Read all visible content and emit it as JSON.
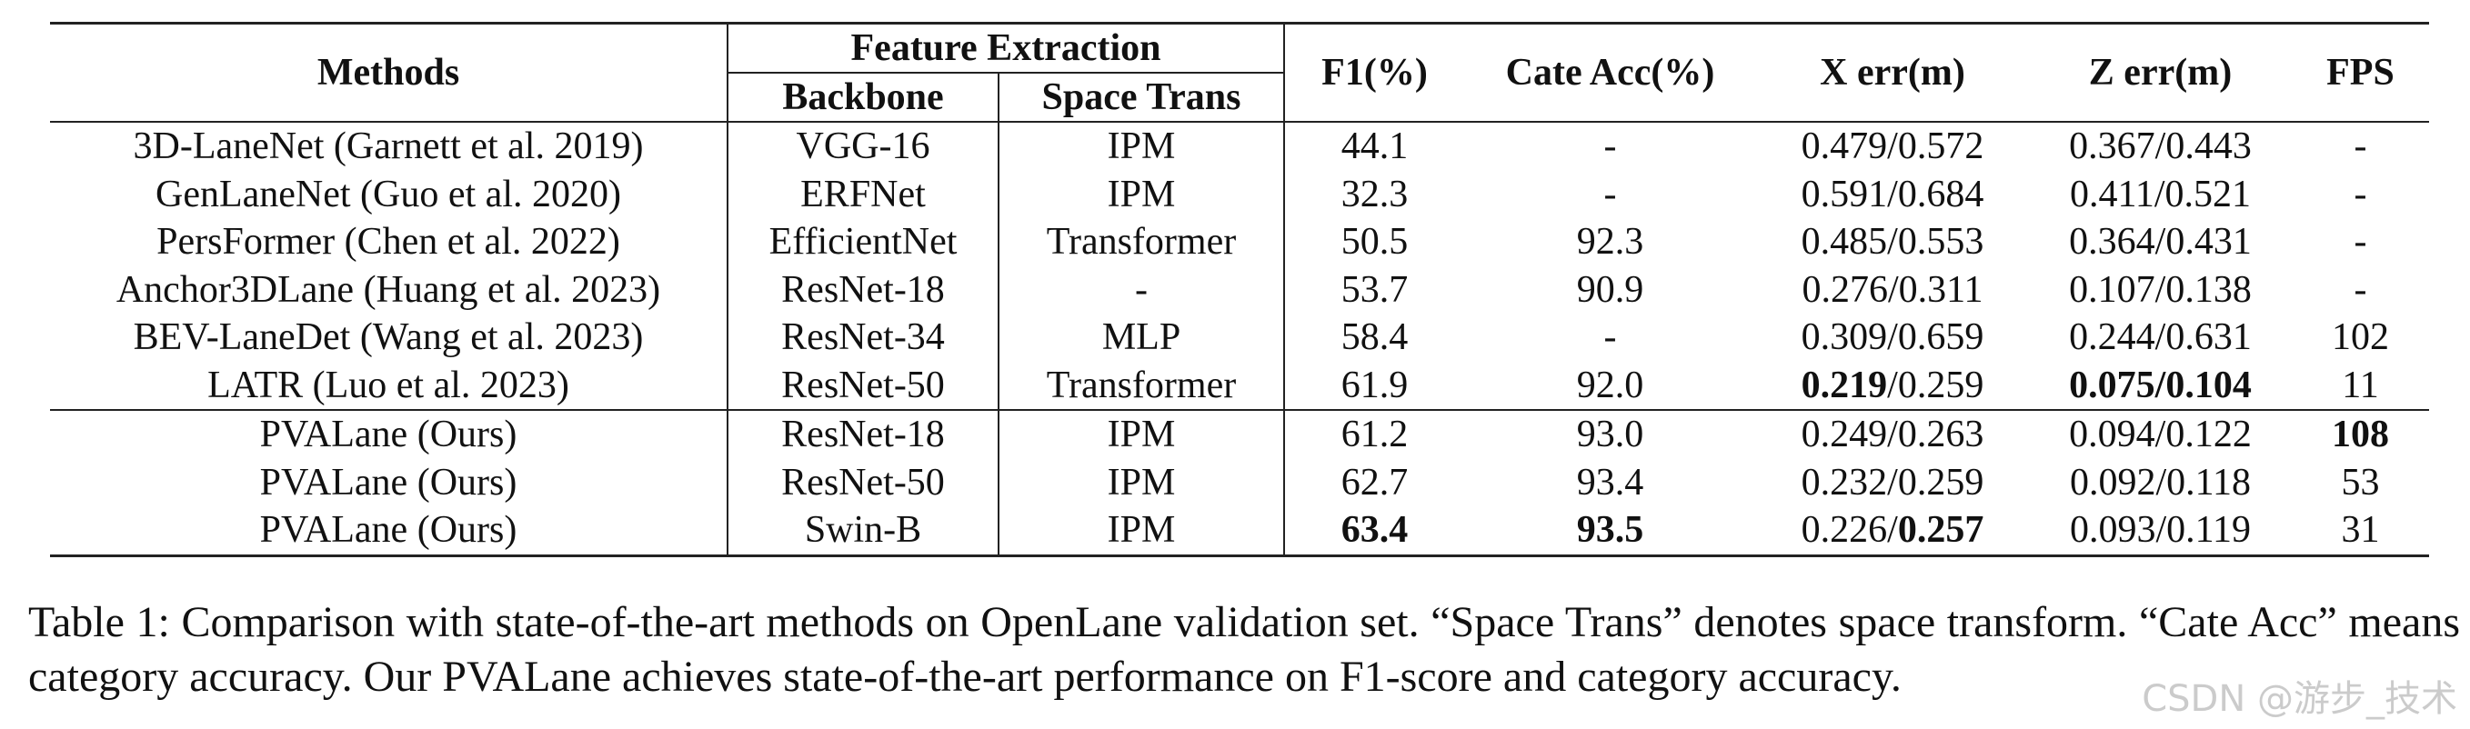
{
  "table": {
    "headers": {
      "methods": "Methods",
      "feature_extraction": "Feature Extraction",
      "sub": [
        "Backbone",
        "Space Trans"
      ],
      "metrics": [
        "F1(%)",
        "Cate Acc(%)",
        "X err(m)",
        "Z err(m)",
        "FPS"
      ]
    },
    "groups": [
      [
        [
          "3D-LaneNet (Garnett et al. 2019)",
          "VGG-16",
          "IPM",
          "44.1",
          "-",
          "0.479/0.572",
          "0.367/0.443",
          "-"
        ],
        [
          "GenLaneNet (Guo et al. 2020)",
          "ERFNet",
          "IPM",
          "32.3",
          "-",
          "0.591/0.684",
          "0.411/0.521",
          "-"
        ],
        [
          "PersFormer (Chen et al. 2022)",
          "EfficientNet",
          "Transformer",
          "50.5",
          "92.3",
          "0.485/0.553",
          "0.364/0.431",
          "-"
        ],
        [
          "Anchor3DLane (Huang et al. 2023)",
          "ResNet-18",
          "-",
          "53.7",
          "90.9",
          "0.276/0.311",
          "0.107/0.138",
          "-"
        ],
        [
          "BEV-LaneDet (Wang et al. 2023)",
          "ResNet-34",
          "MLP",
          "58.4",
          "-",
          "0.309/0.659",
          "0.244/0.631",
          "102"
        ],
        [
          "LATR (Luo et al. 2023)",
          "ResNet-50",
          "Transformer",
          "61.9",
          "92.0",
          [
            {
              "text": "0.219",
              "bold": true
            },
            {
              "text": "/0.259",
              "bold": false
            }
          ],
          [
            {
              "text": "0.075/0.104",
              "bold": true
            }
          ],
          "11"
        ]
      ],
      [
        [
          "PVALane (Ours)",
          "ResNet-18",
          "IPM",
          "61.2",
          "93.0",
          "0.249/0.263",
          "0.094/0.122",
          [
            {
              "text": "108",
              "bold": true
            }
          ]
        ],
        [
          "PVALane (Ours)",
          "ResNet-50",
          "IPM",
          "62.7",
          "93.4",
          "0.232/0.259",
          "0.092/0.118",
          "53"
        ],
        [
          "PVALane (Ours)",
          "Swin-B",
          "IPM",
          [
            {
              "text": "63.4",
              "bold": true
            }
          ],
          [
            {
              "text": "93.5",
              "bold": true
            }
          ],
          [
            {
              "text": "0.226/",
              "bold": false
            },
            {
              "text": "0.257",
              "bold": true
            }
          ],
          "0.093/0.119",
          "31"
        ]
      ]
    ]
  },
  "caption": "Table 1: Comparison with state-of-the-art methods on OpenLane validation set. “Space Trans” denotes space transform. “Cate Acc” means category accuracy. Our PVALane achieves state-of-the-art performance on F1-score and category accuracy.",
  "watermark": "CSDN @游步_技术"
}
